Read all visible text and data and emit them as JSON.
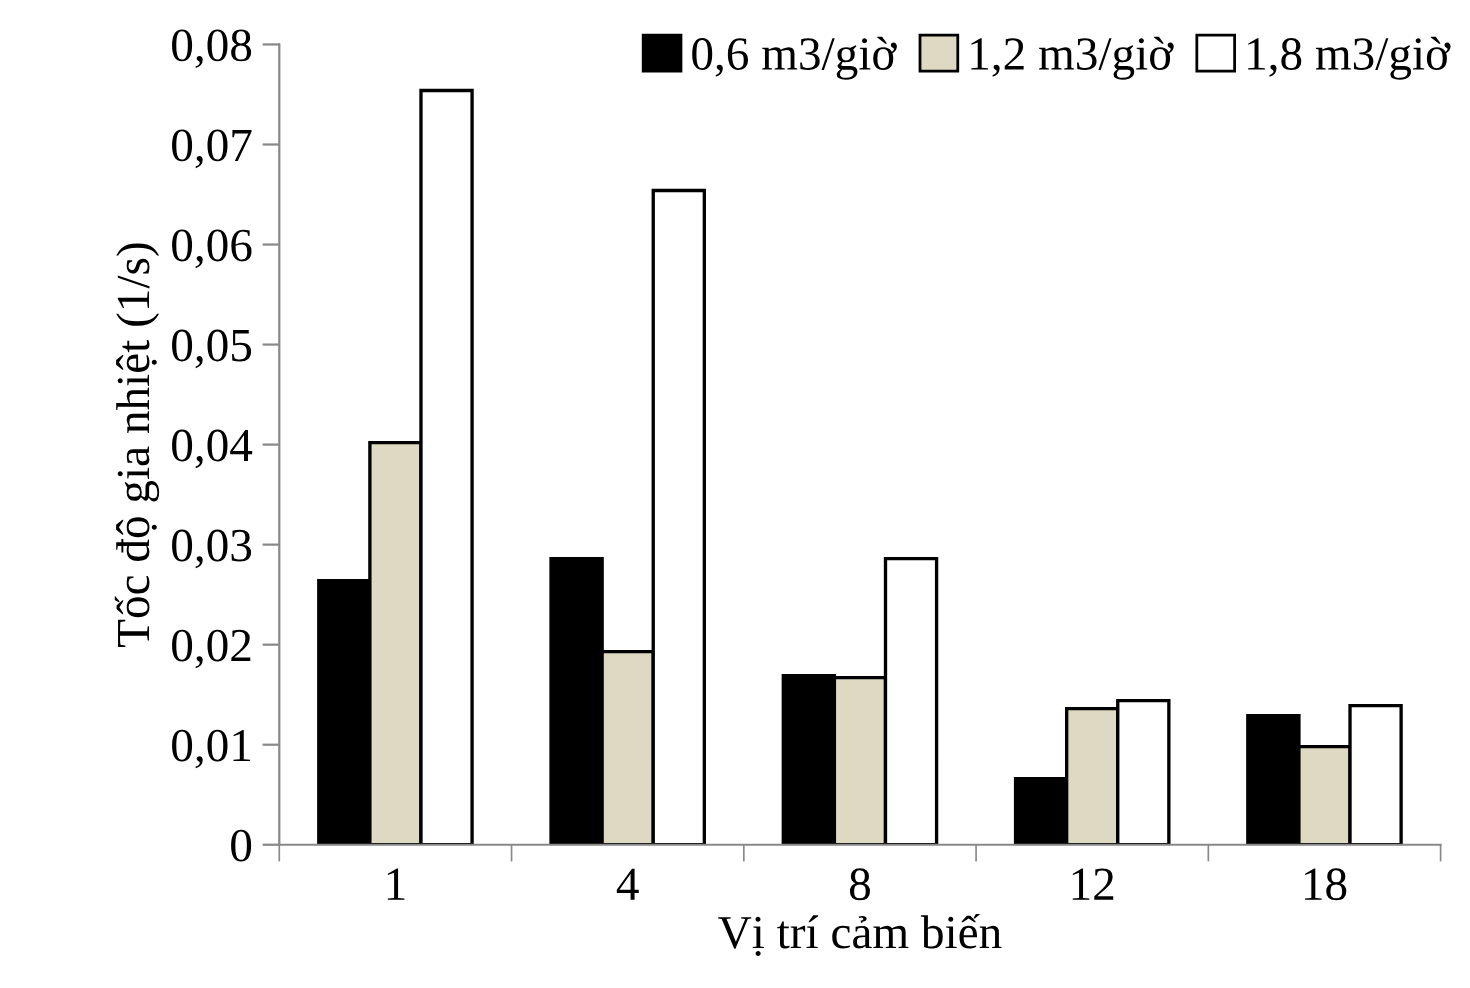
{
  "chart_data": {
    "type": "bar",
    "xlabel": "Vị trí cảm biến",
    "ylabel": "Tốc độ gia nhiệt (1/s)",
    "categories": [
      "1",
      "4",
      "8",
      "12",
      "18"
    ],
    "series": [
      {
        "name": "0,6 m3/giờ",
        "color": "#000000",
        "values": [
          0.0264,
          0.0286,
          0.0169,
          0.0066,
          0.0129
        ]
      },
      {
        "name": "1,2 m3/giờ",
        "color": "#ddd9c3",
        "values": [
          0.0402,
          0.0193,
          0.0167,
          0.0136,
          0.0098
        ]
      },
      {
        "name": "1,8 m3/giờ",
        "color": "#ffffff",
        "values": [
          0.0754,
          0.0654,
          0.0286,
          0.0144,
          0.0139
        ]
      }
    ],
    "ylim": [
      0,
      0.08
    ],
    "yticks": [
      {
        "value": 0,
        "label": "0"
      },
      {
        "value": 0.01,
        "label": "0,01"
      },
      {
        "value": 0.02,
        "label": "0,02"
      },
      {
        "value": 0.03,
        "label": "0,03"
      },
      {
        "value": 0.04,
        "label": "0,04"
      },
      {
        "value": 0.05,
        "label": "0,05"
      },
      {
        "value": 0.06,
        "label": "0,06"
      },
      {
        "value": 0.07,
        "label": "0,07"
      },
      {
        "value": 0.08,
        "label": "0,08"
      }
    ],
    "grid": false,
    "legend": "top right"
  }
}
